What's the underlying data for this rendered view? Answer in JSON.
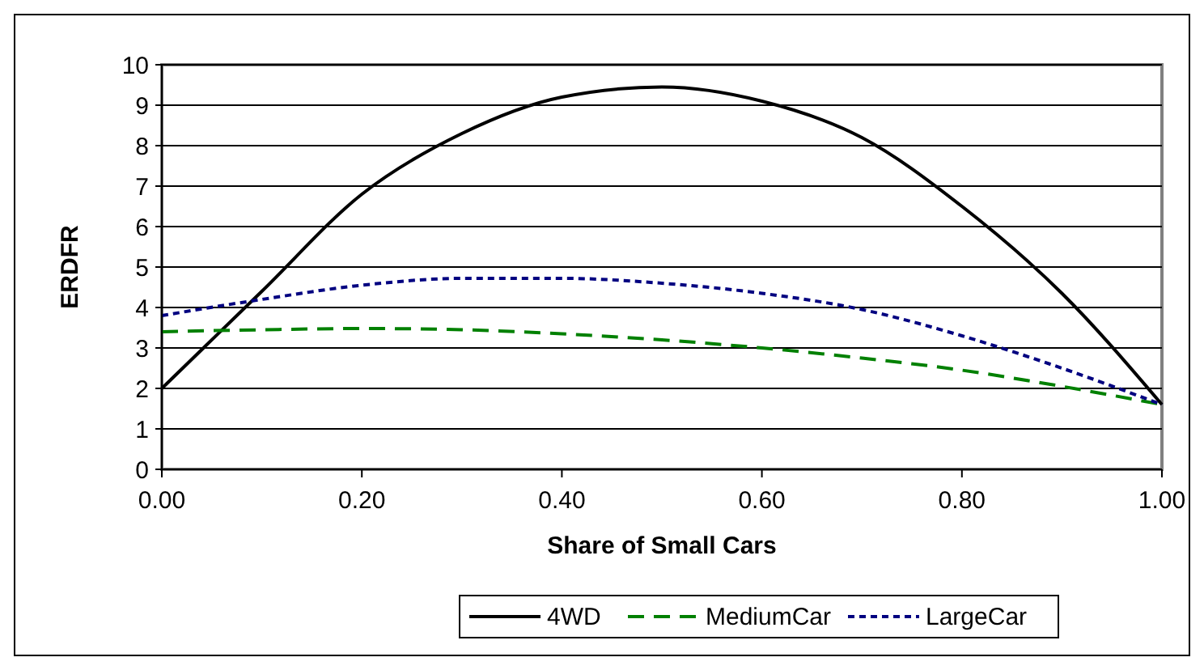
{
  "chart_data": {
    "type": "line",
    "xlabel": "Share of Small Cars",
    "ylabel": "ERDFR",
    "x": [
      0,
      0.1,
      0.2,
      0.3,
      0.4,
      0.5,
      0.6,
      0.7,
      0.8,
      0.9,
      1.0
    ],
    "xlim": [
      0,
      1
    ],
    "xticks": [
      {
        "value": 0,
        "label": "0.00"
      },
      {
        "value": 0.2,
        "label": "0.20"
      },
      {
        "value": 0.4,
        "label": "0.40"
      },
      {
        "value": 0.6,
        "label": "0.60"
      },
      {
        "value": 0.8,
        "label": "0.80"
      },
      {
        "value": 1,
        "label": "1.00"
      }
    ],
    "ylim": [
      0,
      10
    ],
    "yticks": [
      0,
      1,
      2,
      3,
      4,
      5,
      6,
      7,
      8,
      9,
      10
    ],
    "grid": "y",
    "legend": "bottom",
    "marker": "none",
    "series": [
      {
        "name": "4WD",
        "color": "#000000",
        "line_style": "solid",
        "values": [
          2.0,
          4.4,
          6.8,
          8.3,
          9.2,
          9.45,
          9.1,
          8.2,
          6.5,
          4.35,
          1.6
        ]
      },
      {
        "name": "MediumCar",
        "color": "#008000",
        "line_style": "dashed",
        "values": [
          3.4,
          3.45,
          3.48,
          3.45,
          3.35,
          3.2,
          3.0,
          2.75,
          2.45,
          2.05,
          1.6
        ]
      },
      {
        "name": "LargeCar",
        "color": "#000080",
        "line_style": "dotted",
        "values": [
          3.8,
          4.2,
          4.55,
          4.72,
          4.72,
          4.6,
          4.35,
          3.95,
          3.3,
          2.5,
          1.6
        ]
      }
    ]
  }
}
